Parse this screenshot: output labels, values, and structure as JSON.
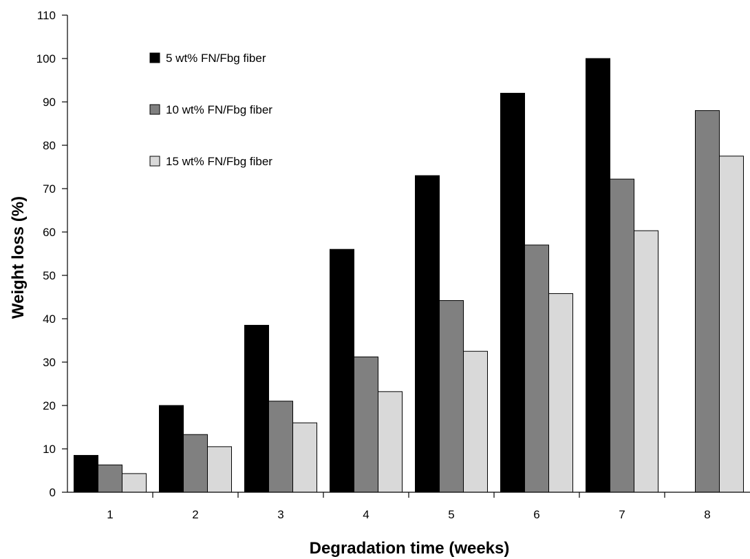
{
  "chart_data": {
    "type": "bar",
    "title": "",
    "xlabel": "Degradation time (weeks)",
    "ylabel": "Weight loss (%)",
    "categories": [
      "1",
      "2",
      "3",
      "4",
      "5",
      "6",
      "7",
      "8"
    ],
    "ylim": [
      0,
      110
    ],
    "yticks": [
      0,
      10,
      20,
      30,
      40,
      50,
      60,
      70,
      80,
      90,
      100,
      110
    ],
    "grid": false,
    "legend_position": "top-left",
    "series": [
      {
        "name": "5 wt% FN/Fbg fiber",
        "color": "#000000",
        "values": [
          8.5,
          20,
          38.5,
          56,
          73,
          92,
          100,
          null
        ]
      },
      {
        "name": "10 wt% FN/Fbg fiber",
        "color": "#808080",
        "values": [
          6.3,
          13.3,
          21,
          31.2,
          44.2,
          57,
          72.2,
          88
        ]
      },
      {
        "name": "15 wt% FN/Fbg fiber",
        "color": "#d9d9d9",
        "values": [
          4.3,
          10.5,
          16,
          23.2,
          32.5,
          45.8,
          60.3,
          77.5
        ]
      }
    ]
  }
}
